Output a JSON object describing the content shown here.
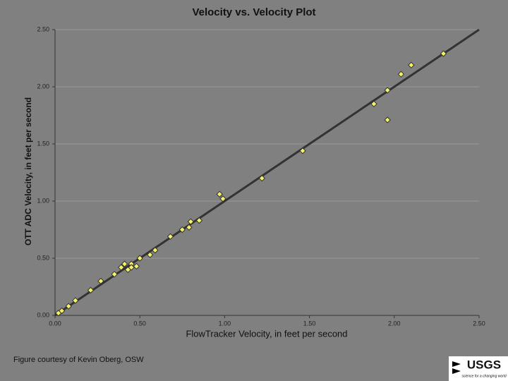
{
  "chart_data": {
    "type": "scatter",
    "title": "Velocity vs. Velocity Plot",
    "x_label": "FlowTracker Velocity, in feet per second",
    "y_label": "OTT ADC Velocity, in feet per second",
    "series": [
      {
        "name": "Measurements",
        "color": "#f5f26a",
        "x": [
          0.02,
          0.04,
          0.08,
          0.12,
          0.21,
          0.27,
          0.35,
          0.39,
          0.41,
          0.43,
          0.45,
          0.45,
          0.48,
          0.5,
          0.56,
          0.59,
          0.68,
          0.75,
          0.79,
          0.8,
          0.85,
          0.97,
          0.99,
          1.22,
          1.46,
          1.88,
          1.96,
          1.96,
          2.04,
          2.1,
          2.29
        ],
        "values": [
          0.02,
          0.04,
          0.08,
          0.13,
          0.22,
          0.3,
          0.36,
          0.42,
          0.45,
          0.4,
          0.45,
          0.42,
          0.43,
          0.5,
          0.53,
          0.57,
          0.69,
          0.75,
          0.77,
          0.82,
          0.83,
          1.06,
          1.02,
          1.2,
          1.44,
          1.85,
          1.71,
          1.97,
          2.11,
          2.19,
          2.29
        ]
      }
    ],
    "reference_line": {
      "color": "#333333",
      "x": [
        0,
        2.5
      ],
      "values": [
        0,
        2.5
      ]
    },
    "xlim": [
      0,
      2.5
    ],
    "ylim": [
      0,
      2.5
    ],
    "xticks": [
      {
        "value": 0,
        "label": "0.00"
      },
      {
        "value": 0.5,
        "label": "0.50"
      },
      {
        "value": 1,
        "label": "1.00"
      },
      {
        "value": 1.5,
        "label": "1.50"
      },
      {
        "value": 2,
        "label": "2.00"
      },
      {
        "value": 2.5,
        "label": "2.50"
      }
    ],
    "yticks": [
      {
        "value": 0,
        "label": "0.00"
      },
      {
        "value": 0.5,
        "label": "0.50"
      },
      {
        "value": 1,
        "label": "1.00"
      },
      {
        "value": 1.5,
        "label": "1.50"
      },
      {
        "value": 2,
        "label": "2.00"
      },
      {
        "value": 2.5,
        "label": "2.50"
      }
    ],
    "grid": true
  },
  "footer": {
    "credit": "Figure courtesy of Kevin Oberg, OSW",
    "logo": "USGS",
    "logo_tagline": "science for a changing world"
  }
}
